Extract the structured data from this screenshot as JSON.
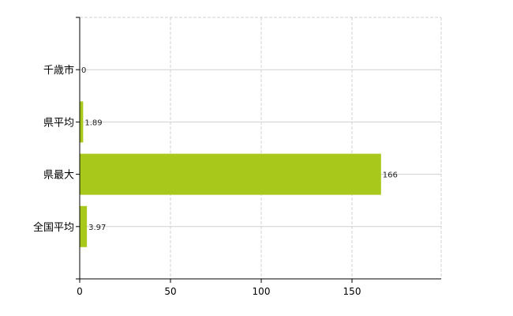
{
  "chart_data": {
    "type": "bar",
    "orientation": "horizontal",
    "categories": [
      "千歳市",
      "県平均",
      "県最大",
      "全国平均"
    ],
    "values": [
      0,
      1.89,
      166,
      3.97
    ],
    "data_labels": [
      "0",
      "1.89",
      "166",
      "3.97"
    ],
    "title": "",
    "xlabel": "",
    "ylabel": "",
    "xlim": [
      0,
      200
    ],
    "xticks": [
      "0",
      "50",
      "100",
      "150"
    ],
    "xtick_values": [
      0,
      50,
      100,
      150
    ],
    "grid": true,
    "legend": "none",
    "colors": {
      "bar": "#a8c81c",
      "grid": "#d0d0d0",
      "axis": "#000000"
    }
  }
}
